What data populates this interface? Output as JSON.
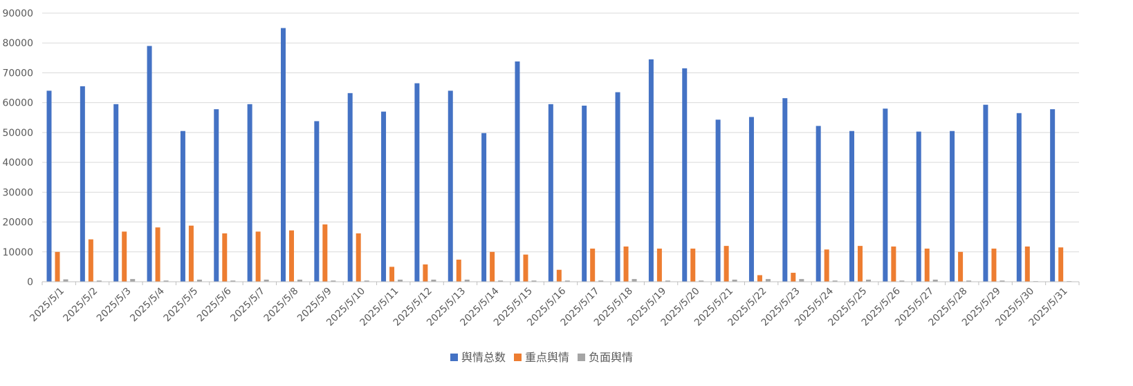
{
  "chart_data": {
    "type": "bar",
    "title": "",
    "xlabel": "",
    "ylabel": "",
    "ylim": [
      0,
      90000
    ],
    "yticks": [
      0,
      10000,
      20000,
      30000,
      40000,
      50000,
      60000,
      70000,
      80000,
      90000
    ],
    "grid": true,
    "legend_position": "bottom",
    "categories": [
      "2025/5/1",
      "2025/5/2",
      "2025/5/3",
      "2025/5/4",
      "2025/5/5",
      "2025/5/6",
      "2025/5/7",
      "2025/5/8",
      "2025/5/9",
      "2025/5/10",
      "2025/5/11",
      "2025/5/12",
      "2025/5/13",
      "2025/5/14",
      "2025/5/15",
      "2025/5/16",
      "2025/5/17",
      "2025/5/18",
      "2025/5/19",
      "2025/5/20",
      "2025/5/21",
      "2025/5/22",
      "2025/5/23",
      "2025/5/24",
      "2025/5/25",
      "2025/5/26",
      "2025/5/27",
      "2025/5/28",
      "2025/5/29",
      "2025/5/30",
      "2025/5/31"
    ],
    "series": [
      {
        "name": "舆情总数",
        "color": "#4472C4",
        "values": [
          64000,
          65500,
          59500,
          79000,
          50500,
          57800,
          59500,
          85000,
          53800,
          63200,
          57000,
          66500,
          64000,
          49800,
          73800,
          59500,
          59000,
          63500,
          74500,
          71500,
          54300,
          55200,
          61500,
          52200,
          50500,
          58000,
          50300,
          50500,
          59300,
          56500,
          57800
        ]
      },
      {
        "name": "重点舆情",
        "color": "#ED7D31",
        "values": [
          10000,
          14200,
          16800,
          18200,
          18800,
          16200,
          16800,
          17200,
          19200,
          16200,
          5000,
          5800,
          7400,
          10000,
          9100,
          4000,
          11100,
          11800,
          11100,
          11100,
          12000,
          2200,
          3000,
          10800,
          12000,
          11800,
          11100,
          10000,
          11100,
          11800,
          11500
        ]
      },
      {
        "name": "负面舆情",
        "color": "#A5A5A5",
        "values": [
          800,
          400,
          900,
          400,
          700,
          400,
          700,
          700,
          400,
          400,
          700,
          700,
          700,
          400,
          400,
          400,
          400,
          900,
          400,
          400,
          700,
          900,
          900,
          400,
          700,
          400,
          700,
          400,
          400,
          200,
          200
        ]
      }
    ]
  }
}
